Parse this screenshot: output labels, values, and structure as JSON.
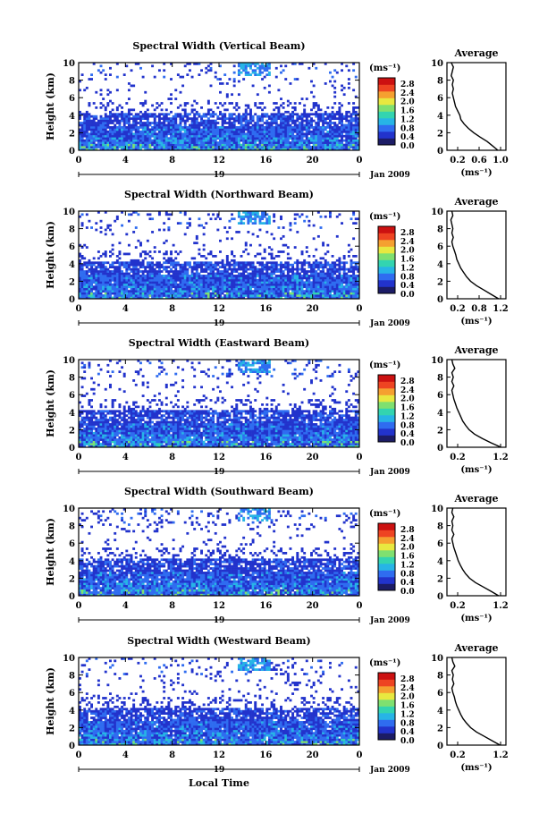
{
  "figure": {
    "xlabel": "Local Time",
    "date_label": "Jan 2009",
    "day_label": "19",
    "unit_label": "(ms⁻¹)",
    "avg_title": "Average"
  },
  "colorbar": {
    "ticks": [
      "2.8",
      "2.4",
      "2.0",
      "1.6",
      "1.2",
      "0.8",
      "0.4",
      "0.0"
    ],
    "colors": [
      "#1c1c66",
      "#2233cc",
      "#2f6cf0",
      "#27b4e6",
      "#33d4b0",
      "#7fe070",
      "#e8e840",
      "#f5a030",
      "#ee4422",
      "#cc1111"
    ]
  },
  "chart_data": [
    {
      "type": "heatmap",
      "title": "Spectral Width (Vertical Beam)",
      "ylabel": "Height (km)",
      "xlim": [
        0,
        24
      ],
      "ylim": [
        0,
        10
      ],
      "xticks": [
        "0",
        "4",
        "8",
        "12",
        "16",
        "20",
        "0"
      ],
      "yticks": [
        "0",
        "2",
        "4",
        "6",
        "8",
        "10"
      ],
      "colorbar_range": [
        0.0,
        2.8
      ],
      "avg_profile": {
        "xticks": [
          "0.2",
          "0.6",
          "1.0"
        ],
        "xlim": [
          0.1,
          1.2
        ],
        "height": [
          0.0,
          0.5,
          1.0,
          1.5,
          2.0,
          2.5,
          3.0,
          3.5,
          4.0,
          4.5,
          5.0,
          5.5,
          6.0,
          6.5,
          7.0,
          7.5,
          8.0,
          8.5,
          9.0,
          9.5,
          10.0
        ],
        "width": [
          1.05,
          0.95,
          0.85,
          0.72,
          0.6,
          0.5,
          0.42,
          0.36,
          0.34,
          0.3,
          0.26,
          0.24,
          0.22,
          0.2,
          0.22,
          0.2,
          0.22,
          0.18,
          0.2,
          0.22,
          0.18
        ]
      }
    },
    {
      "type": "heatmap",
      "title": "Spectral Width (Northward Beam)",
      "ylabel": "Height (km)",
      "xlim": [
        0,
        24
      ],
      "ylim": [
        0,
        10
      ],
      "xticks": [
        "0",
        "4",
        "8",
        "12",
        "16",
        "20",
        "0"
      ],
      "yticks": [
        "0",
        "2",
        "4",
        "6",
        "8",
        "10"
      ],
      "colorbar_range": [
        0.0,
        2.8
      ],
      "avg_profile": {
        "xticks": [
          "0.2",
          "0.8",
          "1.2"
        ],
        "xlim": [
          0.1,
          1.3
        ],
        "height": [
          0.0,
          0.5,
          1.0,
          1.5,
          2.0,
          2.5,
          3.0,
          3.5,
          4.0,
          4.5,
          5.0,
          5.5,
          6.0,
          6.5,
          7.0,
          7.5,
          8.0,
          8.5,
          9.0,
          9.5,
          10.0
        ],
        "width": [
          1.15,
          1.0,
          0.85,
          0.7,
          0.58,
          0.5,
          0.44,
          0.38,
          0.34,
          0.3,
          0.28,
          0.25,
          0.22,
          0.2,
          0.23,
          0.2,
          0.22,
          0.2,
          0.18,
          0.22,
          0.2
        ]
      }
    },
    {
      "type": "heatmap",
      "title": "Spectral Width (Eastward Beam)",
      "ylabel": "Height (km)",
      "xlim": [
        0,
        24
      ],
      "ylim": [
        0,
        10
      ],
      "xticks": [
        "0",
        "4",
        "8",
        "12",
        "16",
        "20",
        "0"
      ],
      "yticks": [
        "0",
        "2",
        "4",
        "6",
        "8",
        "10"
      ],
      "colorbar_range": [
        0.0,
        2.8
      ],
      "avg_profile": {
        "xticks": [
          "0.2",
          "1.2"
        ],
        "xlim": [
          0.1,
          1.3
        ],
        "height": [
          0.0,
          0.5,
          1.0,
          1.5,
          2.0,
          2.5,
          3.0,
          3.5,
          4.0,
          4.5,
          5.0,
          5.5,
          6.0,
          6.5,
          7.0,
          7.5,
          8.0,
          8.5,
          9.0,
          9.5,
          10.0
        ],
        "width": [
          1.2,
          1.0,
          0.82,
          0.66,
          0.55,
          0.48,
          0.42,
          0.38,
          0.34,
          0.3,
          0.27,
          0.24,
          0.22,
          0.2,
          0.24,
          0.2,
          0.23,
          0.2,
          0.26,
          0.22,
          0.2
        ]
      }
    },
    {
      "type": "heatmap",
      "title": "Spectral Width (Southward Beam)",
      "ylabel": "Height (km)",
      "xlim": [
        0,
        24
      ],
      "ylim": [
        0,
        10
      ],
      "xticks": [
        "0",
        "4",
        "8",
        "12",
        "16",
        "20",
        "0"
      ],
      "yticks": [
        "0",
        "2",
        "4",
        "6",
        "8",
        "10"
      ],
      "colorbar_range": [
        0.0,
        2.8
      ],
      "avg_profile": {
        "xticks": [
          "0.2",
          "1.2"
        ],
        "xlim": [
          0.1,
          1.3
        ],
        "height": [
          0.0,
          0.5,
          1.0,
          1.5,
          2.0,
          2.5,
          3.0,
          3.5,
          4.0,
          4.5,
          5.0,
          5.5,
          6.0,
          6.5,
          7.0,
          7.5,
          8.0,
          8.5,
          9.0,
          9.5,
          10.0
        ],
        "width": [
          1.15,
          1.0,
          0.84,
          0.68,
          0.56,
          0.48,
          0.42,
          0.37,
          0.33,
          0.3,
          0.27,
          0.24,
          0.22,
          0.2,
          0.24,
          0.2,
          0.22,
          0.2,
          0.24,
          0.2,
          0.22
        ]
      }
    },
    {
      "type": "heatmap",
      "title": "Spectral Width (Westward Beam)",
      "ylabel": "Height (km)",
      "xlim": [
        0,
        24
      ],
      "ylim": [
        0,
        10
      ],
      "xticks": [
        "0",
        "4",
        "8",
        "12",
        "16",
        "20",
        "0"
      ],
      "yticks": [
        "0",
        "2",
        "4",
        "6",
        "8",
        "10"
      ],
      "colorbar_range": [
        0.0,
        2.8
      ],
      "avg_profile": {
        "xticks": [
          "0.2",
          "1.2"
        ],
        "xlim": [
          0.1,
          1.3
        ],
        "height": [
          0.0,
          0.5,
          1.0,
          1.5,
          2.0,
          2.5,
          3.0,
          3.5,
          4.0,
          4.5,
          5.0,
          5.5,
          6.0,
          6.5,
          7.0,
          7.5,
          8.0,
          8.5,
          9.0,
          9.5,
          10.0
        ],
        "width": [
          1.18,
          1.02,
          0.86,
          0.7,
          0.58,
          0.5,
          0.43,
          0.38,
          0.34,
          0.3,
          0.27,
          0.25,
          0.22,
          0.2,
          0.24,
          0.21,
          0.23,
          0.2,
          0.26,
          0.22,
          0.2
        ]
      }
    }
  ]
}
